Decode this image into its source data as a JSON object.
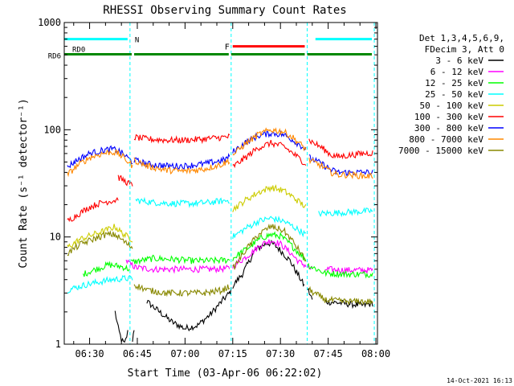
{
  "chart_data": {
    "type": "line",
    "title": "RHESSI Observing Summary Count Rates",
    "xlabel": "Start Time (03-Apr-06 06:22:02)",
    "ylabel": "Count Rate (s⁻¹ detector⁻¹)",
    "yscale": "log",
    "ylim": [
      1,
      1000
    ],
    "xlim_minutes": [
      22.03,
      120.5
    ],
    "x_ticks": [
      {
        "minute": 30,
        "label": "06:30"
      },
      {
        "minute": 45,
        "label": "06:45"
      },
      {
        "minute": 60,
        "label": "07:00"
      },
      {
        "minute": 75,
        "label": "07:15"
      },
      {
        "minute": 90,
        "label": "07:30"
      },
      {
        "minute": 105,
        "label": "07:45"
      },
      {
        "minute": 120,
        "label": "08:00"
      }
    ],
    "y_ticks": [
      {
        "value": 1,
        "label": "1"
      },
      {
        "value": 10,
        "label": "10"
      },
      {
        "value": 100,
        "label": "100"
      },
      {
        "value": 1000,
        "label": "1000"
      }
    ],
    "legend_header": [
      "Det 1,3,4,5,6,9,",
      "FDecim 3, Att 0"
    ],
    "legend_position": "right",
    "series": [
      {
        "name": "3 - 6 keV",
        "color": "#000000",
        "segments": [
          [
            [
              38,
              2.0
            ],
            [
              39,
              1.4
            ],
            [
              40,
              1.1
            ],
            [
              41,
              1.0
            ],
            [
              42,
              1.3
            ]
          ],
          [
            [
              43.5,
              1.1
            ],
            [
              44,
              1.4
            ]
          ],
          [
            [
              48,
              2.5
            ],
            [
              52,
              2.0
            ],
            [
              56,
              1.6
            ],
            [
              60,
              1.4
            ],
            [
              64,
              1.5
            ],
            [
              68,
              1.9
            ],
            [
              72,
              2.6
            ],
            [
              74,
              3.0
            ],
            [
              74.5,
              3.2
            ]
          ],
          [
            [
              75,
              3.5
            ],
            [
              78,
              4.5
            ],
            [
              80,
              5.8
            ],
            [
              82,
              7.5
            ],
            [
              84,
              8.2
            ],
            [
              86,
              8.8
            ],
            [
              88,
              8.5
            ],
            [
              90,
              7.5
            ],
            [
              93,
              6.0
            ],
            [
              96,
              4.2
            ],
            [
              97.5,
              3.5
            ]
          ],
          [
            [
              98.5,
              3.3
            ],
            [
              100,
              2.6
            ]
          ],
          [
            [
              104,
              2.5
            ],
            [
              110,
              2.4
            ],
            [
              116,
              2.3
            ],
            [
              119,
              2.4
            ]
          ]
        ]
      },
      {
        "name": "6 - 12 keV",
        "color": "#ff00ff",
        "segments": [
          [
            [
              41.5,
              6.0
            ],
            [
              43,
              5.5
            ],
            [
              44,
              5.3
            ]
          ],
          [
            [
              44,
              5.2
            ],
            [
              50,
              5.0
            ],
            [
              56,
              5.0
            ],
            [
              62,
              5.0
            ],
            [
              68,
              5.0
            ],
            [
              74,
              5.1
            ]
          ],
          [
            [
              75,
              5.3
            ],
            [
              80,
              6.8
            ],
            [
              84,
              8.5
            ],
            [
              87,
              9.3
            ],
            [
              90,
              8.6
            ],
            [
              93,
              7.2
            ],
            [
              96,
              5.8
            ],
            [
              98,
              5.4
            ]
          ],
          [
            [
              98.5,
              5.2
            ],
            [
              100,
              5.0
            ]
          ],
          [
            [
              104,
              5.0
            ],
            [
              110,
              4.9
            ],
            [
              116,
              4.9
            ],
            [
              119,
              4.9
            ]
          ]
        ]
      },
      {
        "name": "12 - 25 keV",
        "color": "#00ff00",
        "segments": [
          [
            [
              28,
              4.5
            ],
            [
              32,
              5.0
            ],
            [
              36,
              5.5
            ],
            [
              40,
              5.3
            ],
            [
              42.5,
              5.0
            ]
          ],
          [
            [
              43,
              5.8
            ],
            [
              50,
              6.3
            ],
            [
              56,
              6.2
            ],
            [
              62,
              6.0
            ],
            [
              68,
              6.0
            ],
            [
              74,
              6.1
            ]
          ],
          [
            [
              75,
              6.3
            ],
            [
              80,
              8.0
            ],
            [
              84,
              9.8
            ],
            [
              87,
              10.5
            ],
            [
              90,
              10.2
            ],
            [
              93,
              8.6
            ],
            [
              96,
              7.0
            ],
            [
              98,
              6.2
            ]
          ],
          [
            [
              98.5,
              5.5
            ],
            [
              104,
              4.6
            ],
            [
              110,
              4.5
            ],
            [
              116,
              4.5
            ],
            [
              119,
              4.5
            ]
          ]
        ]
      },
      {
        "name": "25 - 50 keV",
        "color": "#00ffff",
        "segments": [
          [
            [
              23,
              3.2
            ],
            [
              26,
              3.4
            ],
            [
              29,
              3.6
            ],
            [
              33,
              3.8
            ],
            [
              37,
              4.0
            ],
            [
              41,
              4.1
            ],
            [
              43.5,
              4.1
            ]
          ],
          [
            [
              44.5,
              22
            ],
            [
              50,
              21
            ],
            [
              56,
              20.5
            ],
            [
              62,
              20.5
            ],
            [
              68,
              21
            ],
            [
              74,
              22
            ]
          ],
          [
            [
              75,
              10
            ],
            [
              79,
              12
            ],
            [
              83,
              14
            ],
            [
              87,
              15
            ],
            [
              91,
              14
            ],
            [
              94,
              12.5
            ],
            [
              98,
              10.5
            ]
          ],
          [
            [
              102,
              16.5
            ],
            [
              108,
              16.8
            ],
            [
              114,
              17.2
            ],
            [
              119,
              17.5
            ]
          ]
        ]
      },
      {
        "name": "50 - 100 keV",
        "color": "#cccc00",
        "segments": [
          [
            [
              23,
              8.0
            ],
            [
              27,
              9.5
            ],
            [
              31,
              10.5
            ],
            [
              35,
              11.5
            ],
            [
              38,
              12.5
            ],
            [
              40,
              11.0
            ],
            [
              42,
              10.0
            ],
            [
              43.5,
              9.5
            ]
          ],
          [
            [
              75,
              18
            ],
            [
              79,
              22
            ],
            [
              83,
              26
            ],
            [
              87,
              29
            ],
            [
              91,
              27
            ],
            [
              94,
              23.5
            ],
            [
              98,
              19
            ]
          ]
        ]
      },
      {
        "name": "100 - 300 keV",
        "color": "#ff0000",
        "segments": [
          [
            [
              23,
              14
            ],
            [
              26,
              16
            ],
            [
              30,
              19
            ],
            [
              34,
              21
            ],
            [
              38,
              22
            ],
            [
              39,
              23
            ]
          ],
          [
            [
              39,
              36
            ],
            [
              42,
              32
            ],
            [
              43.5,
              30
            ]
          ],
          [
            [
              44,
              85
            ],
            [
              48,
              82
            ],
            [
              54,
              80
            ],
            [
              60,
              80
            ],
            [
              66,
              82
            ],
            [
              72,
              85
            ],
            [
              74,
              86
            ]
          ],
          [
            [
              75,
              45
            ],
            [
              79,
              55
            ],
            [
              83,
              68
            ],
            [
              87,
              75
            ],
            [
              91,
              70
            ],
            [
              94,
              60
            ],
            [
              98,
              48
            ]
          ],
          [
            [
              99,
              80
            ],
            [
              103,
              68
            ],
            [
              106,
              58
            ],
            [
              108,
              56
            ],
            [
              112,
              58
            ],
            [
              116,
              60
            ],
            [
              119,
              61
            ]
          ]
        ]
      },
      {
        "name": "300 - 800 keV",
        "color": "#0000ff",
        "segments": [
          [
            [
              23,
              45
            ],
            [
              26,
              52
            ],
            [
              30,
              60
            ],
            [
              34,
              64
            ],
            [
              37,
              66
            ],
            [
              39,
              64
            ],
            [
              41,
              58
            ],
            [
              43.5,
              50
            ]
          ],
          [
            [
              44,
              52
            ],
            [
              48,
              48
            ],
            [
              54,
              46
            ],
            [
              60,
              46
            ],
            [
              66,
              48
            ],
            [
              72,
              52
            ],
            [
              74,
              56
            ]
          ],
          [
            [
              75,
              62
            ],
            [
              79,
              76
            ],
            [
              83,
              88
            ],
            [
              87,
              93
            ],
            [
              91,
              90
            ],
            [
              94,
              80
            ],
            [
              98,
              66
            ]
          ],
          [
            [
              99,
              55
            ],
            [
              103,
              48
            ],
            [
              106,
              42
            ],
            [
              108,
              40
            ],
            [
              112,
              40
            ],
            [
              116,
              40
            ],
            [
              119,
              40
            ]
          ]
        ]
      },
      {
        "name": "800 - 7000 keV",
        "color": "#ff8800",
        "segments": [
          [
            [
              23,
              38
            ],
            [
              26,
              46
            ],
            [
              30,
              55
            ],
            [
              34,
              60
            ],
            [
              37,
              62
            ],
            [
              39,
              60
            ],
            [
              41,
              54
            ],
            [
              43.5,
              46
            ]
          ],
          [
            [
              44,
              52
            ],
            [
              48,
              46
            ],
            [
              54,
              42
            ],
            [
              60,
              41
            ],
            [
              66,
              43
            ],
            [
              72,
              48
            ],
            [
              74,
              52
            ]
          ],
          [
            [
              75,
              58
            ],
            [
              79,
              74
            ],
            [
              83,
              90
            ],
            [
              87,
              100
            ],
            [
              91,
              96
            ],
            [
              94,
              84
            ],
            [
              98,
              66
            ]
          ],
          [
            [
              99,
              52
            ],
            [
              103,
              46
            ],
            [
              106,
              40
            ],
            [
              108,
              38
            ],
            [
              112,
              38
            ],
            [
              116,
              37
            ],
            [
              119,
              37
            ]
          ]
        ]
      },
      {
        "name": "7000 - 15000 keV",
        "color": "#888800",
        "segments": [
          [
            [
              23,
              7.0
            ],
            [
              27,
              8.5
            ],
            [
              31,
              9.5
            ],
            [
              35,
              10.5
            ],
            [
              38,
              10.5
            ],
            [
              40,
              9.5
            ],
            [
              42,
              8.5
            ],
            [
              43.5,
              8.0
            ]
          ],
          [
            [
              44,
              3.6
            ],
            [
              48,
              3.2
            ],
            [
              54,
              3.0
            ],
            [
              60,
              3.0
            ],
            [
              66,
              3.0
            ],
            [
              72,
              3.2
            ],
            [
              74,
              3.5
            ]
          ],
          [
            [
              75,
              5.0
            ],
            [
              79,
              7.5
            ],
            [
              83,
              10.5
            ],
            [
              87,
              12.5
            ],
            [
              91,
              11.5
            ],
            [
              94,
              9.0
            ],
            [
              98,
              6.0
            ]
          ],
          [
            [
              99,
              3.2
            ],
            [
              104,
              2.6
            ],
            [
              110,
              2.5
            ],
            [
              116,
              2.5
            ],
            [
              119,
              2.5
            ]
          ]
        ]
      }
    ],
    "vertical_lines_minutes": [
      42.7,
      74.5,
      98.4,
      119.5
    ],
    "indicator_bands": [
      {
        "label": "N",
        "color": "#00ffff",
        "value": 700,
        "segments": [
          [
            22.03,
            42.7
          ],
          [
            101.0,
            119.5
          ]
        ]
      },
      {
        "label": "F",
        "color": "#ff0000",
        "value": 600,
        "segments": [
          [
            75.0,
            98.4
          ]
        ]
      },
      {
        "label": "RD0",
        "color": "#008800",
        "value": 505,
        "segments": [
          [
            22.03,
            44.0
          ],
          [
            44.0,
            74.5
          ],
          [
            74.5,
            98.4
          ],
          [
            98.4,
            119.5
          ]
        ]
      }
    ],
    "band_labels": {
      "left": "RD6"
    },
    "footer_timestamp": "14-Oct-2021 16:13"
  }
}
